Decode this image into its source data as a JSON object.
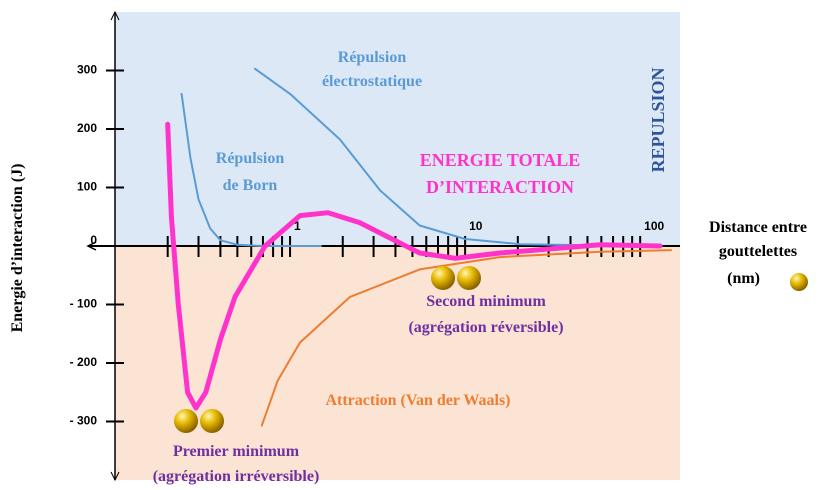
{
  "chart_data": {
    "type": "line",
    "x_log": true,
    "xlim": [
      0.1,
      150
    ],
    "ylim": [
      -400,
      400
    ],
    "xticks": [
      1,
      10,
      100
    ],
    "xminor_ticks": [
      0.2,
      0.3,
      0.4,
      0.5,
      0.6,
      0.7,
      0.8,
      0.9,
      2,
      3,
      4,
      5,
      6,
      7,
      8,
      9,
      20,
      30,
      40,
      50,
      60,
      70,
      80,
      90
    ],
    "yticks": [
      {
        "value": 300,
        "label": "300"
      },
      {
        "value": 200,
        "label": "200"
      },
      {
        "value": 100,
        "label": "100"
      },
      {
        "value": 0,
        "label": "0"
      },
      {
        "value": -100,
        "label": "- 100"
      },
      {
        "value": -200,
        "label": "- 200"
      },
      {
        "value": -300,
        "label": "- 300"
      }
    ],
    "y_label": "Energie d’interaction (J)",
    "x_label": [
      "Distance entre",
      "gouttelettes",
      "(nm)"
    ],
    "regions": {
      "positive_color": "#dce8f5",
      "negative_color": "#fbe4d4"
    },
    "series": [
      {
        "color": "#5b9bd5",
        "width": 2,
        "x": [
          0.24,
          0.27,
          0.3,
          0.35,
          0.4,
          0.5,
          0.7,
          1.5
        ],
        "values": [
          260,
          150,
          80,
          30,
          10,
          2,
          0,
          0
        ]
      },
      {
        "color": "#5b9bd5",
        "width": 2,
        "x": [
          0.63,
          1,
          1.93,
          3.27,
          5.5,
          10,
          20.6,
          100
        ],
        "values": [
          303,
          260,
          182,
          95,
          35,
          12,
          3,
          0
        ]
      },
      {
        "color": "#ed7d31",
        "width": 2,
        "x": [
          0.69,
          0.85,
          1.14,
          2.2,
          5.5,
          15.8,
          59,
          150
        ],
        "values": [
          -307,
          -230,
          -165,
          -87,
          -40,
          -19,
          -10,
          -7
        ]
      },
      {
        "color": "#ff33cc",
        "width": 5,
        "x": [
          0.2,
          0.21,
          0.23,
          0.26,
          0.29,
          0.33,
          0.4,
          0.485,
          0.72,
          1.14,
          1.65,
          2.5,
          5.5,
          8.8,
          15.8,
          59,
          130
        ],
        "values": [
          208,
          50,
          -100,
          -250,
          -277,
          -250,
          -160,
          -87,
          0,
          52,
          57,
          40,
          -12,
          -21,
          -12,
          2,
          0
        ]
      }
    ],
    "annotations": {
      "electro": [
        "Répulsion",
        "électrostatique"
      ],
      "born": [
        "Répulsion",
        "de Born"
      ],
      "total": [
        "ENERGIE TOTALE",
        "D’INTERACTION"
      ],
      "repulsion": "REPULSION",
      "second": [
        "Second minimum",
        "(agrégation réversible)"
      ],
      "premier": [
        "Premier minimum",
        "(agrégation irréversible)"
      ],
      "attraction": "Attraction (Van der Waals)"
    }
  }
}
